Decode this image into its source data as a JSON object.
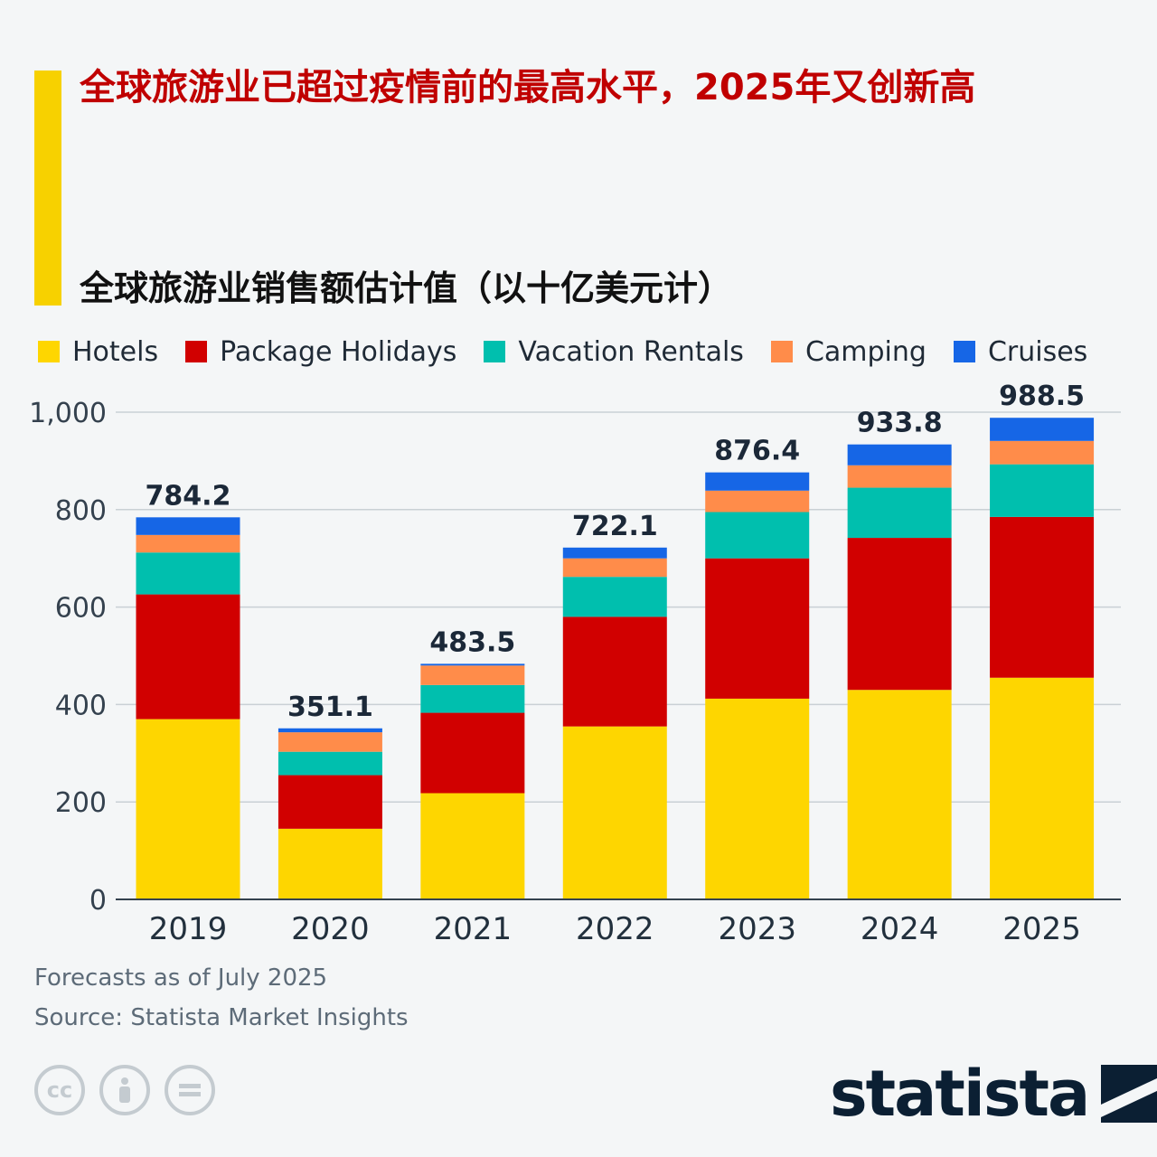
{
  "header": {
    "title": "全球旅游业已超过疫情前的最高水平，2025年又创新高",
    "subtitle": "全球旅游业销售额估计值（以十亿美元计）",
    "accent_color": "#f7d100",
    "title_color": "#c00000"
  },
  "chart_data": {
    "type": "bar",
    "stacked": true,
    "categories": [
      "2019",
      "2020",
      "2021",
      "2022",
      "2023",
      "2024",
      "2025"
    ],
    "series": [
      {
        "name": "Hotels",
        "color": "#fed600",
        "values": [
          370,
          145,
          218,
          355,
          412,
          430,
          455
        ]
      },
      {
        "name": "Package Holidays",
        "color": "#d10000",
        "values": [
          256,
          110,
          165,
          225,
          288,
          312,
          330
        ]
      },
      {
        "name": "Vacation Rentals",
        "color": "#00bfae",
        "values": [
          86,
          48,
          57,
          82,
          95,
          103,
          108
        ]
      },
      {
        "name": "Camping",
        "color": "#ff8c4a",
        "values": [
          36,
          40,
          40,
          38,
          44,
          46,
          48
        ]
      },
      {
        "name": "Cruises",
        "color": "#1666e6",
        "values": [
          36.2,
          8.1,
          3.5,
          22.1,
          37.4,
          42.8,
          47.5
        ]
      }
    ],
    "totals": [
      "784.2",
      "351.1",
      "483.5",
      "722.1",
      "876.4",
      "933.8",
      "988.5"
    ],
    "yticks": [
      "0",
      "200",
      "400",
      "600",
      "800",
      "1,000"
    ],
    "ylim": [
      0,
      1000
    ],
    "grid": true,
    "legend_position": "top-left"
  },
  "footer": {
    "note": "Forecasts as of July 2025",
    "source": "Source: Statista Market Insights",
    "license_icons": [
      "cc-icon",
      "attribution-icon",
      "no-derivatives-icon"
    ],
    "logo_text": "statista"
  }
}
